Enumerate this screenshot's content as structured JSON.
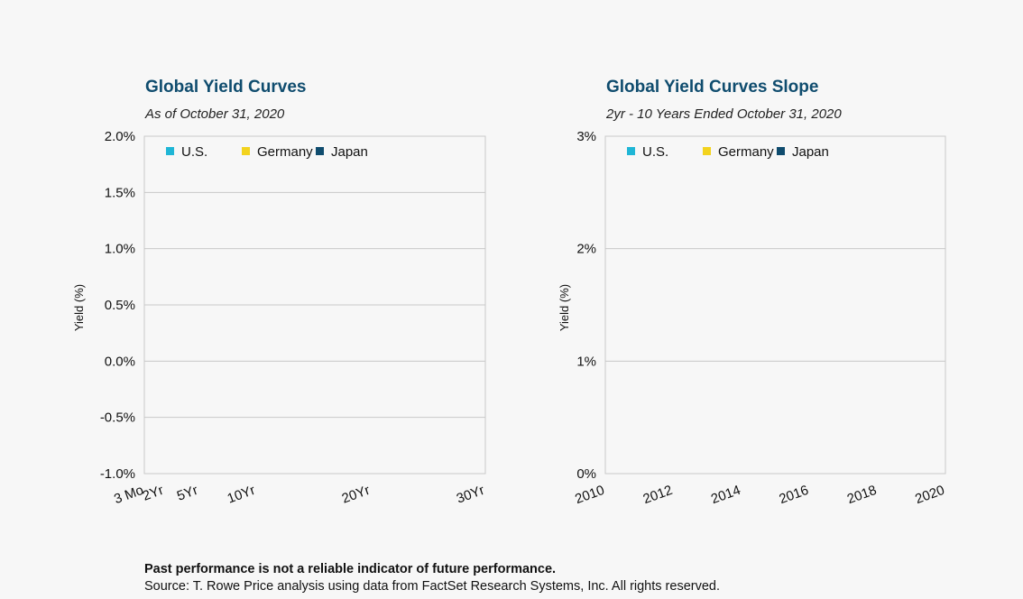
{
  "colors": {
    "title": "#0f4c6e",
    "us": "#1fb6d6",
    "germany": "#f3d31e",
    "japan": "#0f4c6e",
    "grid": "#c8c8c8",
    "frame": "#c8c8c8"
  },
  "chart_data": [
    {
      "type": "line",
      "title": "Global Yield Curves",
      "subtitle": "As of October 31, 2020",
      "xlabel": "",
      "ylabel": "Yield (%)",
      "x_tick_labels": [
        "3 Mo",
        "2Yr",
        "5Yr",
        "10Yr",
        "20Yr",
        "30Yr"
      ],
      "x_tick_years": [
        0.25,
        2,
        5,
        10,
        20,
        30
      ],
      "xlim": [
        0.25,
        30
      ],
      "y_tick_labels": [
        "2.0%",
        "1.5%",
        "1.0%",
        "0.5%",
        "0.0%",
        "-0.5%",
        "-1.0%"
      ],
      "y_tick_values": [
        2.0,
        1.5,
        1.0,
        0.5,
        0.0,
        -0.5,
        -1.0
      ],
      "ylim": [
        -1.0,
        2.0
      ],
      "grid": true,
      "legend_position": "top-left",
      "series": [
        {
          "name": "U.S.",
          "color": "#1fb6d6",
          "values": []
        },
        {
          "name": "Germany",
          "color": "#f3d31e",
          "values": []
        },
        {
          "name": "Japan",
          "color": "#0f4c6e",
          "values": []
        }
      ]
    },
    {
      "type": "line",
      "title": "Global Yield Curves Slope",
      "subtitle": "2yr - 10 Years Ended October 31, 2020",
      "xlabel": "",
      "ylabel": "Yield (%)",
      "x_tick_labels": [
        "2010",
        "2012",
        "2014",
        "2016",
        "2018",
        "2020"
      ],
      "x_tick_years": [
        2010,
        2012,
        2014,
        2016,
        2018,
        2020
      ],
      "xlim": [
        2010,
        2020
      ],
      "y_tick_labels": [
        "3%",
        "2%",
        "1%",
        "0%"
      ],
      "y_tick_values": [
        3,
        2,
        1,
        0
      ],
      "ylim": [
        0,
        3
      ],
      "grid": true,
      "legend_position": "top-left",
      "series": [
        {
          "name": "U.S.",
          "color": "#1fb6d6",
          "values": []
        },
        {
          "name": "Germany",
          "color": "#f3d31e",
          "values": []
        },
        {
          "name": "Japan",
          "color": "#0f4c6e",
          "values": []
        }
      ]
    }
  ],
  "footer": {
    "disclaimer": "Past performance is not a reliable indicator of future performance.",
    "source": "Source: T. Rowe Price analysis using data from FactSet Research Systems, Inc. All rights reserved."
  }
}
